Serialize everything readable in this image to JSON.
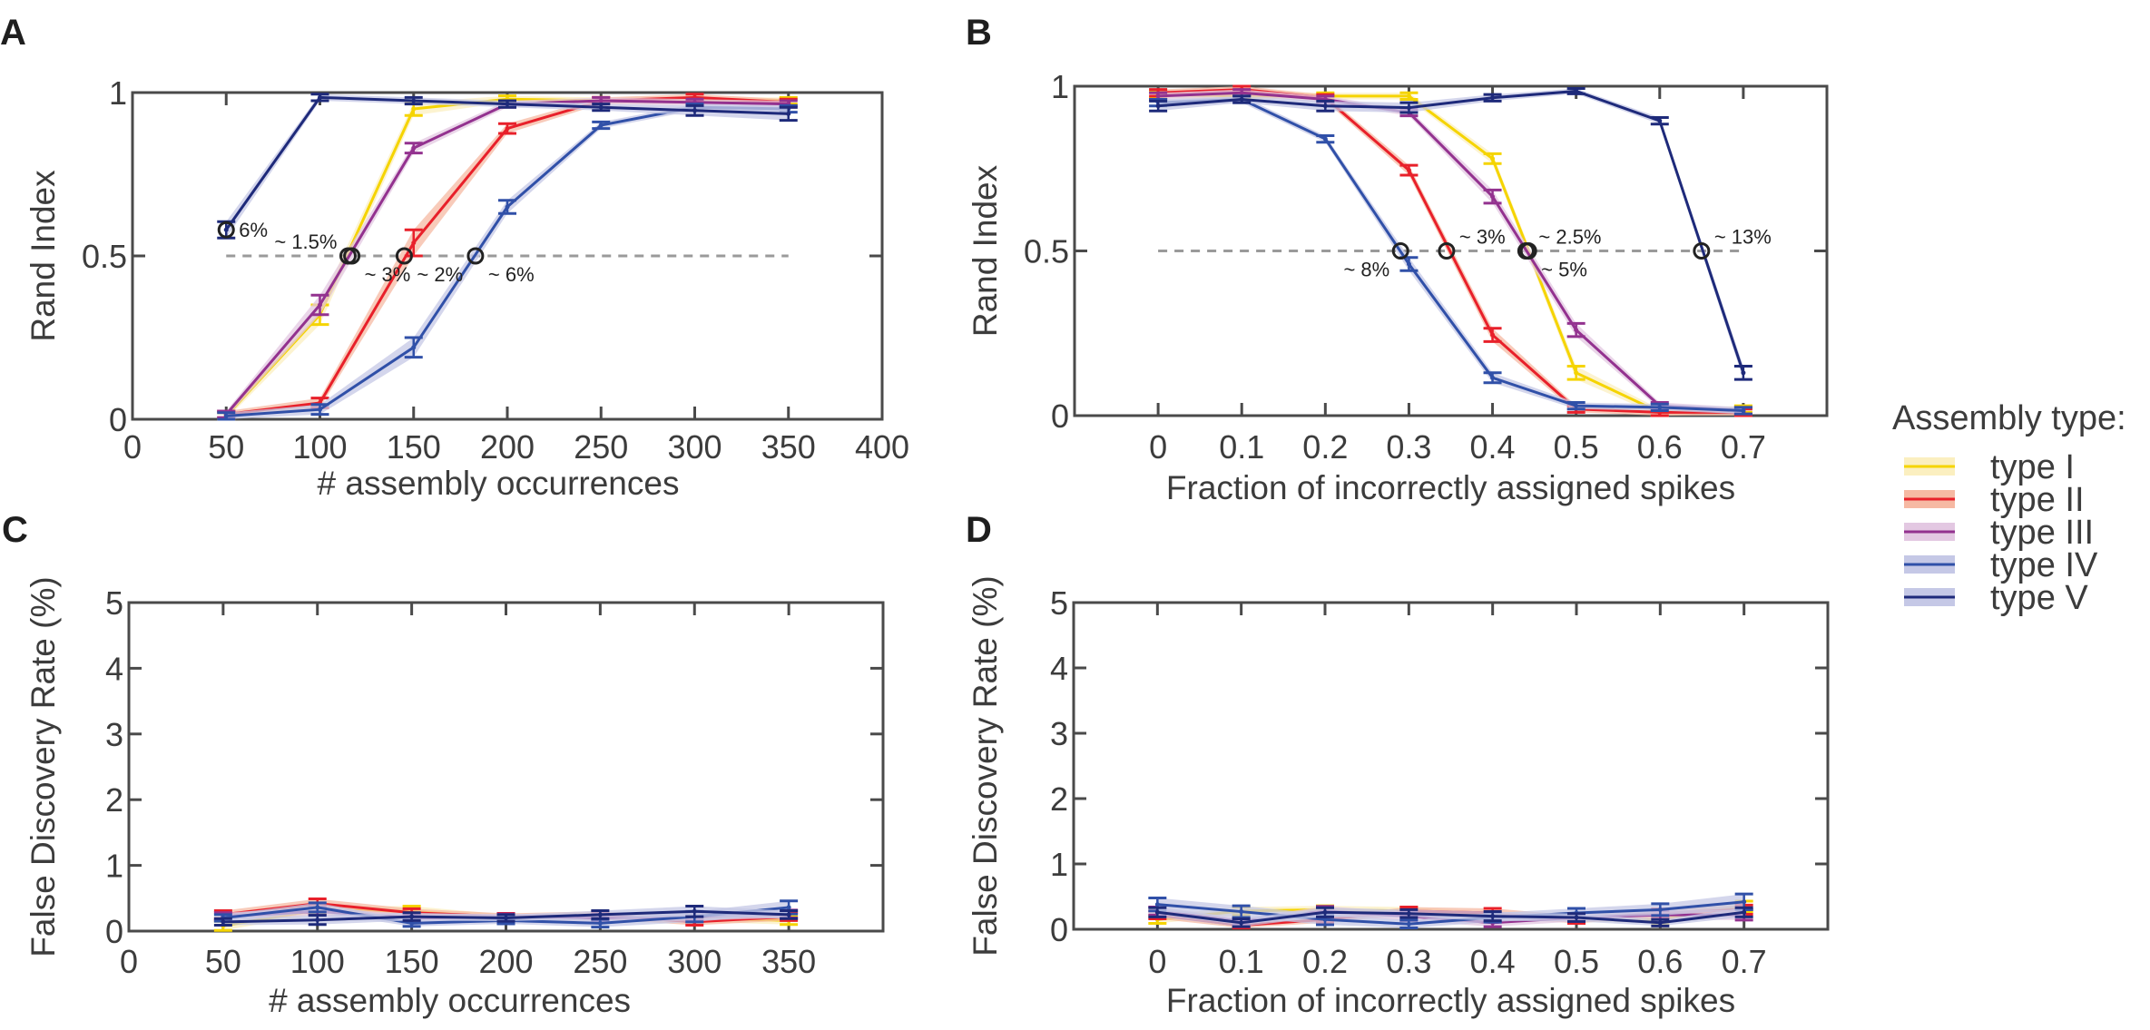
{
  "legend": {
    "title": "Assembly type:",
    "position": "right",
    "entries": [
      {
        "label": "type I",
        "color": "#f5d400",
        "band": "#fbefc0"
      },
      {
        "label": "type II",
        "color": "#e8202a",
        "band": "#f6b9a3"
      },
      {
        "label": "type III",
        "color": "#93328f",
        "band": "#e3c8e2"
      },
      {
        "label": "type IV",
        "color": "#3050a8",
        "band": "#c5c8e6"
      },
      {
        "label": "type V",
        "color": "#1e2a7a",
        "band": "#c5c8e6"
      }
    ]
  },
  "chart_data": [
    {
      "panel": "A",
      "type": "line",
      "xlabel": "# assembly occurrences",
      "ylabel": "Rand Index",
      "xlim": [
        0,
        400
      ],
      "ylim": [
        0,
        1
      ],
      "xticks": [
        0,
        50,
        100,
        150,
        200,
        250,
        300,
        350,
        400
      ],
      "xtick_labels": [
        "0",
        "50",
        "100",
        "150",
        "200",
        "250",
        "300",
        "350",
        "400"
      ],
      "yticks": [
        0,
        0.5,
        1
      ],
      "ytick_labels": [
        "0",
        "0.5",
        "1"
      ],
      "reference_line": {
        "y": 0.5,
        "x_from": 50,
        "x_to": 350,
        "style": "dashed"
      },
      "x": [
        50,
        100,
        150,
        200,
        250,
        300,
        350
      ],
      "series": [
        {
          "name": "type I",
          "values": [
            0.01,
            0.32,
            0.95,
            0.98,
            0.975,
            0.975,
            0.975
          ],
          "err": [
            0.01,
            0.03,
            0.02,
            0.01,
            0.01,
            0.01,
            0.01
          ]
        },
        {
          "name": "type II",
          "values": [
            0.015,
            0.05,
            0.54,
            0.89,
            0.975,
            0.985,
            0.97
          ],
          "err": [
            0.01,
            0.015,
            0.04,
            0.015,
            0.01,
            0.01,
            0.01
          ]
        },
        {
          "name": "type III",
          "values": [
            0.015,
            0.35,
            0.83,
            0.965,
            0.975,
            0.97,
            0.965
          ],
          "err": [
            0.01,
            0.03,
            0.015,
            0.01,
            0.01,
            0.01,
            0.01
          ]
        },
        {
          "name": "type IV",
          "values": [
            0.01,
            0.03,
            0.22,
            0.65,
            0.9,
            0.955,
            0.95
          ],
          "err": [
            0.01,
            0.015,
            0.03,
            0.02,
            0.01,
            0.01,
            0.01
          ]
        },
        {
          "name": "type V",
          "values": [
            0.58,
            0.985,
            0.975,
            0.965,
            0.955,
            0.945,
            0.935
          ],
          "err": [
            0.025,
            0.01,
            0.01,
            0.01,
            0.01,
            0.015,
            0.02
          ]
        }
      ],
      "annotations": [
        {
          "text": "6%",
          "x": 50,
          "y": 0.58,
          "label_dx": 1,
          "label_dy": 0
        },
        {
          "text": "~ 1.5%",
          "x": 115,
          "y": 0.5,
          "label_dx": -1,
          "label_dy": -1
        },
        {
          "text": "~ 3%",
          "x": 117,
          "y": 0.5,
          "label_dx": 1,
          "label_dy": 1
        },
        {
          "text": "~ 2%",
          "x": 145,
          "y": 0.5,
          "label_dx": 1,
          "label_dy": 1
        },
        {
          "text": "~ 6%",
          "x": 183,
          "y": 0.5,
          "label_dx": 1,
          "label_dy": 1
        }
      ]
    },
    {
      "panel": "B",
      "type": "line",
      "xlabel": "Fraction of incorrectly assigned spikes",
      "ylabel": "Rand Index",
      "xlim": [
        -0.1,
        0.8
      ],
      "ylim": [
        0,
        1
      ],
      "xticks": [
        0,
        0.1,
        0.2,
        0.3,
        0.4,
        0.5,
        0.6,
        0.7
      ],
      "xtick_labels": [
        "0",
        "0.1",
        "0.2",
        "0.3",
        "0.4",
        "0.5",
        "0.6",
        "0.7"
      ],
      "yticks": [
        0,
        0.5,
        1
      ],
      "ytick_labels": [
        "0",
        "0.5",
        "1"
      ],
      "reference_line": {
        "y": 0.5,
        "x_from": 0,
        "x_to": 0.7,
        "style": "dashed"
      },
      "x": [
        0,
        0.1,
        0.2,
        0.3,
        0.4,
        0.5,
        0.6,
        0.7
      ],
      "series": [
        {
          "name": "type I",
          "values": [
            0.975,
            0.97,
            0.97,
            0.97,
            0.78,
            0.13,
            0.01,
            0.02
          ],
          "err": [
            0.01,
            0.01,
            0.01,
            0.01,
            0.015,
            0.02,
            0.01,
            0.01
          ]
        },
        {
          "name": "type II",
          "values": [
            0.98,
            0.99,
            0.965,
            0.745,
            0.245,
            0.02,
            0.01,
            0.01
          ],
          "err": [
            0.01,
            0.01,
            0.01,
            0.015,
            0.02,
            0.01,
            0.01,
            0.01
          ]
        },
        {
          "name": "type III",
          "values": [
            0.97,
            0.98,
            0.96,
            0.92,
            0.665,
            0.26,
            0.03,
            0.015
          ],
          "err": [
            0.01,
            0.01,
            0.01,
            0.01,
            0.02,
            0.02,
            0.01,
            0.01
          ]
        },
        {
          "name": "type IV",
          "values": [
            0.95,
            0.96,
            0.84,
            0.46,
            0.115,
            0.03,
            0.025,
            0.015
          ],
          "err": [
            0.01,
            0.01,
            0.01,
            0.02,
            0.015,
            0.01,
            0.01,
            0.01
          ]
        },
        {
          "name": "type V",
          "values": [
            0.94,
            0.96,
            0.94,
            0.935,
            0.965,
            0.985,
            0.895,
            0.13
          ],
          "err": [
            0.015,
            0.01,
            0.015,
            0.015,
            0.01,
            0.008,
            0.01,
            0.02
          ]
        }
      ],
      "annotations": [
        {
          "text": "~ 8%",
          "x": 0.29,
          "y": 0.5,
          "label_dx": -1,
          "label_dy": 1
        },
        {
          "text": "~ 3%",
          "x": 0.345,
          "y": 0.5,
          "label_dx": 1,
          "label_dy": -1
        },
        {
          "text": "~ 2.5%",
          "x": 0.44,
          "y": 0.5,
          "label_dx": 1,
          "label_dy": -1
        },
        {
          "text": "~ 5%",
          "x": 0.443,
          "y": 0.5,
          "label_dx": 1,
          "label_dy": 1
        },
        {
          "text": "~ 13%",
          "x": 0.65,
          "y": 0.5,
          "label_dx": 1,
          "label_dy": -1
        }
      ]
    },
    {
      "panel": "C",
      "type": "line",
      "xlabel": "# assembly occurrences",
      "ylabel": "False Discovery Rate (%)",
      "xlim": [
        0,
        400
      ],
      "ylim": [
        0,
        5
      ],
      "xticks": [
        0,
        50,
        100,
        150,
        200,
        250,
        300,
        350
      ],
      "xtick_labels": [
        "0",
        "50",
        "100",
        "150",
        "200",
        "250",
        "300",
        "350"
      ],
      "yticks": [
        0,
        1,
        2,
        3,
        4,
        5
      ],
      "ytick_labels": [
        "0",
        "1",
        "2",
        "3",
        "4",
        "5"
      ],
      "x": [
        50,
        100,
        150,
        200,
        250,
        300,
        350
      ],
      "series": [
        {
          "name": "type I",
          "values": [
            0.08,
            0.32,
            0.3,
            0.2,
            0.22,
            0.2,
            0.16
          ],
          "err": [
            0.07,
            0.06,
            0.08,
            0.05,
            0.06,
            0.06,
            0.06
          ]
        },
        {
          "name": "type II",
          "values": [
            0.25,
            0.42,
            0.28,
            0.22,
            0.24,
            0.14,
            0.22
          ],
          "err": [
            0.06,
            0.07,
            0.06,
            0.05,
            0.06,
            0.05,
            0.06
          ]
        },
        {
          "name": "type III",
          "values": [
            0.22,
            0.3,
            0.2,
            0.2,
            0.2,
            0.22,
            0.26
          ],
          "err": [
            0.06,
            0.06,
            0.06,
            0.06,
            0.06,
            0.06,
            0.06
          ]
        },
        {
          "name": "type IV",
          "values": [
            0.2,
            0.36,
            0.12,
            0.16,
            0.12,
            0.22,
            0.36
          ],
          "err": [
            0.05,
            0.07,
            0.05,
            0.05,
            0.06,
            0.08,
            0.1
          ]
        },
        {
          "name": "type V",
          "values": [
            0.14,
            0.17,
            0.22,
            0.2,
            0.25,
            0.3,
            0.25
          ],
          "err": [
            0.05,
            0.07,
            0.06,
            0.05,
            0.06,
            0.08,
            0.06
          ]
        }
      ]
    },
    {
      "panel": "D",
      "type": "line",
      "xlabel": "Fraction of incorrectly assigned spikes",
      "ylabel": "False Discovery Rate (%)",
      "xlim": [
        -0.1,
        0.8
      ],
      "ylim": [
        0,
        5
      ],
      "xticks": [
        0,
        0.1,
        0.2,
        0.3,
        0.4,
        0.5,
        0.6,
        0.7
      ],
      "xtick_labels": [
        "0",
        "0.1",
        "0.2",
        "0.3",
        "0.4",
        "0.5",
        "0.6",
        "0.7"
      ],
      "yticks": [
        0,
        1,
        2,
        3,
        4,
        5
      ],
      "ytick_labels": [
        "0",
        "1",
        "2",
        "3",
        "4",
        "5"
      ],
      "x": [
        0,
        0.1,
        0.2,
        0.3,
        0.4,
        0.5,
        0.6,
        0.7
      ],
      "series": [
        {
          "name": "type I",
          "values": [
            0.15,
            0.28,
            0.3,
            0.28,
            0.2,
            0.18,
            0.15,
            0.35
          ],
          "err": [
            0.06,
            0.06,
            0.06,
            0.06,
            0.06,
            0.06,
            0.06,
            0.08
          ]
        },
        {
          "name": "type II",
          "values": [
            0.22,
            0.06,
            0.15,
            0.28,
            0.25,
            0.15,
            0.25,
            0.3
          ],
          "err": [
            0.06,
            0.04,
            0.05,
            0.06,
            0.07,
            0.06,
            0.06,
            0.07
          ]
        },
        {
          "name": "type III",
          "values": [
            0.28,
            0.12,
            0.28,
            0.2,
            0.1,
            0.18,
            0.22,
            0.22
          ],
          "err": [
            0.06,
            0.05,
            0.07,
            0.07,
            0.06,
            0.06,
            0.07,
            0.08
          ]
        },
        {
          "name": "type IV",
          "values": [
            0.38,
            0.27,
            0.15,
            0.08,
            0.18,
            0.25,
            0.3,
            0.42
          ],
          "err": [
            0.1,
            0.09,
            0.08,
            0.06,
            0.07,
            0.07,
            0.09,
            0.12
          ]
        },
        {
          "name": "type V",
          "values": [
            0.26,
            0.1,
            0.26,
            0.24,
            0.2,
            0.18,
            0.1,
            0.26
          ],
          "err": [
            0.07,
            0.06,
            0.07,
            0.06,
            0.07,
            0.06,
            0.05,
            0.07
          ]
        }
      ]
    }
  ]
}
